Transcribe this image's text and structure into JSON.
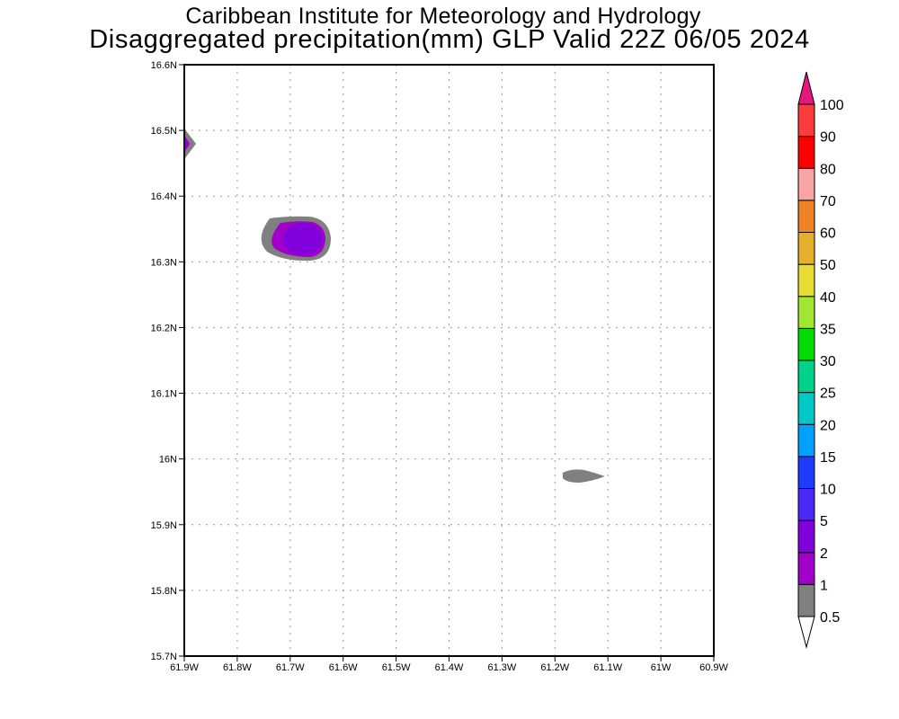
{
  "header": {
    "title_line1": "Caribbean Institute for Meteorology and Hydrology",
    "title_line2": "Disaggregated precipitation(mm) GLP Valid 22Z 06/05 2024"
  },
  "chart_data": {
    "type": "heatmap",
    "xlabel": "",
    "ylabel": "",
    "grid": true,
    "x_range": [
      -61.9,
      -60.9
    ],
    "y_range": [
      15.7,
      16.6
    ],
    "x_ticks": [
      "61.9W",
      "61.8W",
      "61.7W",
      "61.6W",
      "61.5W",
      "61.4W",
      "61.3W",
      "61.2W",
      "61.1W",
      "61W",
      "60.9W"
    ],
    "y_ticks": [
      "15.7N",
      "15.8N",
      "15.9N",
      "16N",
      "16.1N",
      "16.2N",
      "16.3N",
      "16.4N",
      "16.5N",
      "16.6N"
    ],
    "features": [
      {
        "name": "cell-west-edge",
        "lon": -61.9,
        "lat": 16.48,
        "max_band": "2-5"
      },
      {
        "name": "cell-main",
        "lon": -61.69,
        "lat": 16.335,
        "max_band": "2-5"
      },
      {
        "name": "cell-southeast",
        "lon": -61.15,
        "lat": 15.975,
        "max_band": "0.5-1"
      }
    ],
    "colorbar": {
      "labels": [
        "0.5",
        "1",
        "2",
        "5",
        "10",
        "15",
        "20",
        "25",
        "30",
        "35",
        "40",
        "50",
        "60",
        "70",
        "80",
        "90",
        "100"
      ],
      "colors": [
        "#808080",
        "#a000c8",
        "#8200dc",
        "#4b28f5",
        "#1e3cff",
        "#00a0ff",
        "#00c8c8",
        "#00d28c",
        "#00dc00",
        "#a0e632",
        "#e6dc32",
        "#e6af2d",
        "#f08228",
        "#faa5a5",
        "#ff0000",
        "#fa3c3c"
      ],
      "over_color": "#e6157f",
      "under_color": "#ffffff"
    }
  }
}
